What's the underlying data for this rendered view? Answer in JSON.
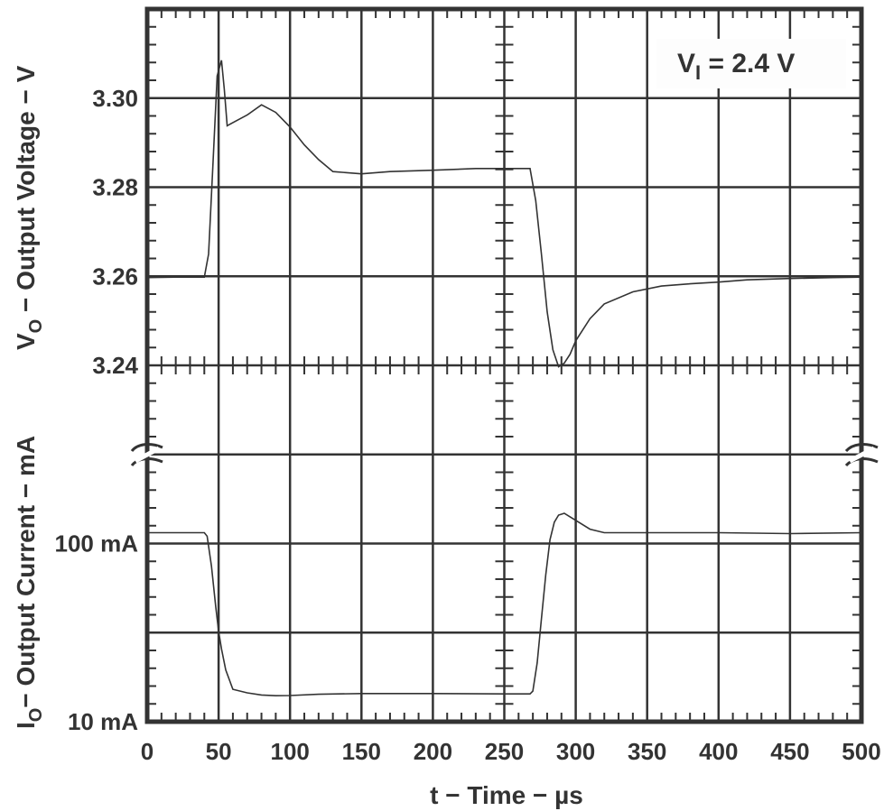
{
  "chart_data": {
    "type": "line",
    "title": "",
    "annotation": {
      "text_main": "V",
      "text_sub": "I",
      "text_rest": " = 2.4 V"
    },
    "xlabel": "t − Time − µs",
    "x_ticks": [
      "0",
      "50",
      "100",
      "150",
      "200",
      "250",
      "300",
      "350",
      "400",
      "450",
      "500"
    ],
    "xlim": [
      0,
      500
    ],
    "grid": true,
    "panels": [
      {
        "name": "output-voltage",
        "ylabel_main": "V",
        "ylabel_sub": "O",
        "ylabel_rest": " − Output Voltage − V",
        "ylim": [
          3.24,
          3.32
        ],
        "y_ticks": [
          "3.30",
          "3.28",
          "3.26",
          "3.24"
        ],
        "series": [
          {
            "name": "VO",
            "x": [
              0,
              20,
              40,
              43,
              46,
              49,
              52,
              54,
              56,
              60,
              70,
              80,
              90,
              100,
              110,
              120,
              130,
              150,
              170,
              200,
              230,
              250,
              268,
              272,
              276,
              280,
              284,
              288,
              292,
              296,
              300,
              310,
              320,
              340,
              360,
              380,
              400,
              420,
              450,
              480,
              500
            ],
            "y": [
              3.2597,
              3.2598,
              3.2598,
              3.265,
              3.285,
              3.305,
              3.3085,
              3.302,
              3.2938,
              3.2945,
              3.2962,
              3.2985,
              3.2968,
              3.2935,
              3.2895,
              3.2862,
              3.2835,
              3.283,
              3.2835,
              3.2838,
              3.2842,
              3.2842,
              3.2842,
              3.277,
              3.265,
              3.252,
              3.2435,
              3.2397,
              3.2405,
              3.2425,
              3.2455,
              3.2505,
              3.2538,
              3.2565,
              3.2578,
              3.2583,
              3.2587,
              3.2592,
              3.2595,
              3.2597,
              3.2598
            ]
          }
        ]
      },
      {
        "name": "output-current",
        "ylabel_main": "I",
        "ylabel_sub": "O",
        "ylabel_rest": "− Output Current − mA",
        "y_ticks": [
          "100 mA",
          "10 mA"
        ],
        "y_scale_note": "broken axis; levels 10 mA and 100 mA",
        "series": [
          {
            "name": "IO",
            "x": [
              0,
              20,
              40,
              42,
              45,
              48,
              50,
              52,
              55,
              60,
              70,
              80,
              90,
              100,
              120,
              150,
              200,
              250,
              268,
              270,
              273,
              276,
              279,
              282,
              285,
              288,
              292,
              296,
              300,
              310,
              320,
              350,
              400,
              450,
              500
            ],
            "y": [
              104,
              104,
              104,
              102,
              85,
              62,
              48,
              38,
              26,
              15,
              13,
              11.8,
              11.4,
              11.5,
              12.2,
              12.6,
              12.6,
              12.4,
              12.4,
              14,
              30,
              55,
              80,
              100,
              110,
              114,
              115,
              113,
              111,
              106,
              104,
              104,
              104,
              103.5,
              104
            ]
          }
        ]
      }
    ]
  }
}
